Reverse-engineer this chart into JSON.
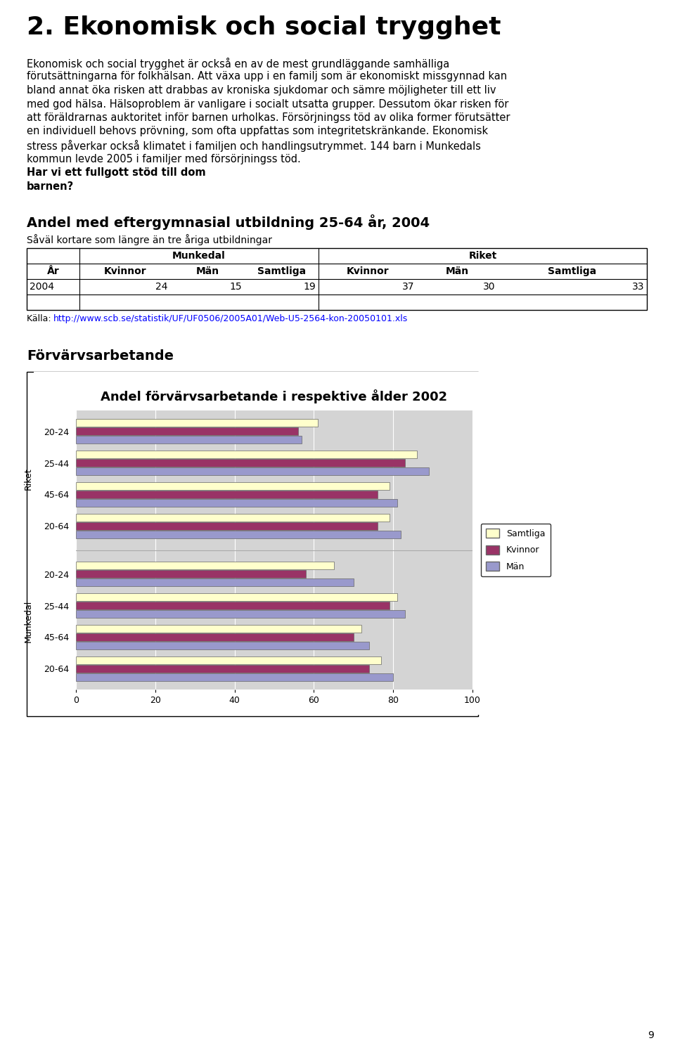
{
  "title": "2. Ekonomisk och social trygghet",
  "body_line1": "Ekonomisk och social trygghet är också en av de mest grundläggande samhälliga",
  "body_line2": "förutsättningarna för folkhälsan. Att växa upp i en familj som är ekonomiskt missgynnad kan",
  "body_line3": "bland annat öka risken att drabbas av kroniska sjukdomar och sämre möjligheter till ett liv",
  "body_line4": "med god hälsa. Hälsoproblem är vanligare i socialt utsatta grupper. Dessutom ökar risken för",
  "body_line5": "att föräldrarnas auktoritet inför barnen urholkas. Försörjningss töd av olika former förutsätter",
  "body_line6": "en individuell behovs prövning, som ofta uppfattas som integritetskränkande. Ekonomisk",
  "body_line7": "stress påverkar också klimatet i familjen och handlingsutrymmet. 144 barn i Munkedals",
  "body_line8": "kommun levde 2005 i familjer med försörjningss töd. ",
  "body_bold": "Har vi ett fullgott stöd till dom",
  "body_bold2": "barnen?",
  "section_title": "Andel med eftergymnasial utbildning 25-64 år, 2004",
  "table_subtitle": "Såväl kortare som längre än tre åriga utbildningar",
  "source_prefix": "Källa: ",
  "source_url": "http://www.scb.se/statistik/UF/UF0506/2005A01/Web-U5-2564-kon-20050101.xls",
  "forvarvs_title": "Förvärvsarbetande",
  "chart_title": "Andel förvärvsarbetande i respektive ålder 2002",
  "bar_colors": {
    "Samtliga": "#ffffcc",
    "Kvinnor": "#993366",
    "Män": "#9999cc"
  },
  "riket_groups": [
    "20-64",
    "45-64",
    "25-44",
    "20-24"
  ],
  "munkedal_groups": [
    "20-64",
    "45-64",
    "25-44",
    "20-24"
  ],
  "riket_data": {
    "20-64": {
      "Samtliga": 79,
      "Kvinnor": 76,
      "Män": 82
    },
    "45-64": {
      "Samtliga": 79,
      "Kvinnor": 76,
      "Män": 81
    },
    "25-44": {
      "Samtliga": 86,
      "Kvinnor": 83,
      "Män": 89
    },
    "20-24": {
      "Samtliga": 61,
      "Kvinnor": 56,
      "Män": 57
    }
  },
  "munkedal_data": {
    "20-64": {
      "Samtliga": 77,
      "Kvinnor": 74,
      "Män": 80
    },
    "45-64": {
      "Samtliga": 72,
      "Kvinnor": 70,
      "Män": 74
    },
    "25-44": {
      "Samtliga": 81,
      "Kvinnor": 79,
      "Män": 83
    },
    "20-24": {
      "Samtliga": 65,
      "Kvinnor": 58,
      "Män": 70
    }
  },
  "xticks": [
    0,
    20,
    40,
    60,
    80,
    100
  ],
  "page_number": "9"
}
